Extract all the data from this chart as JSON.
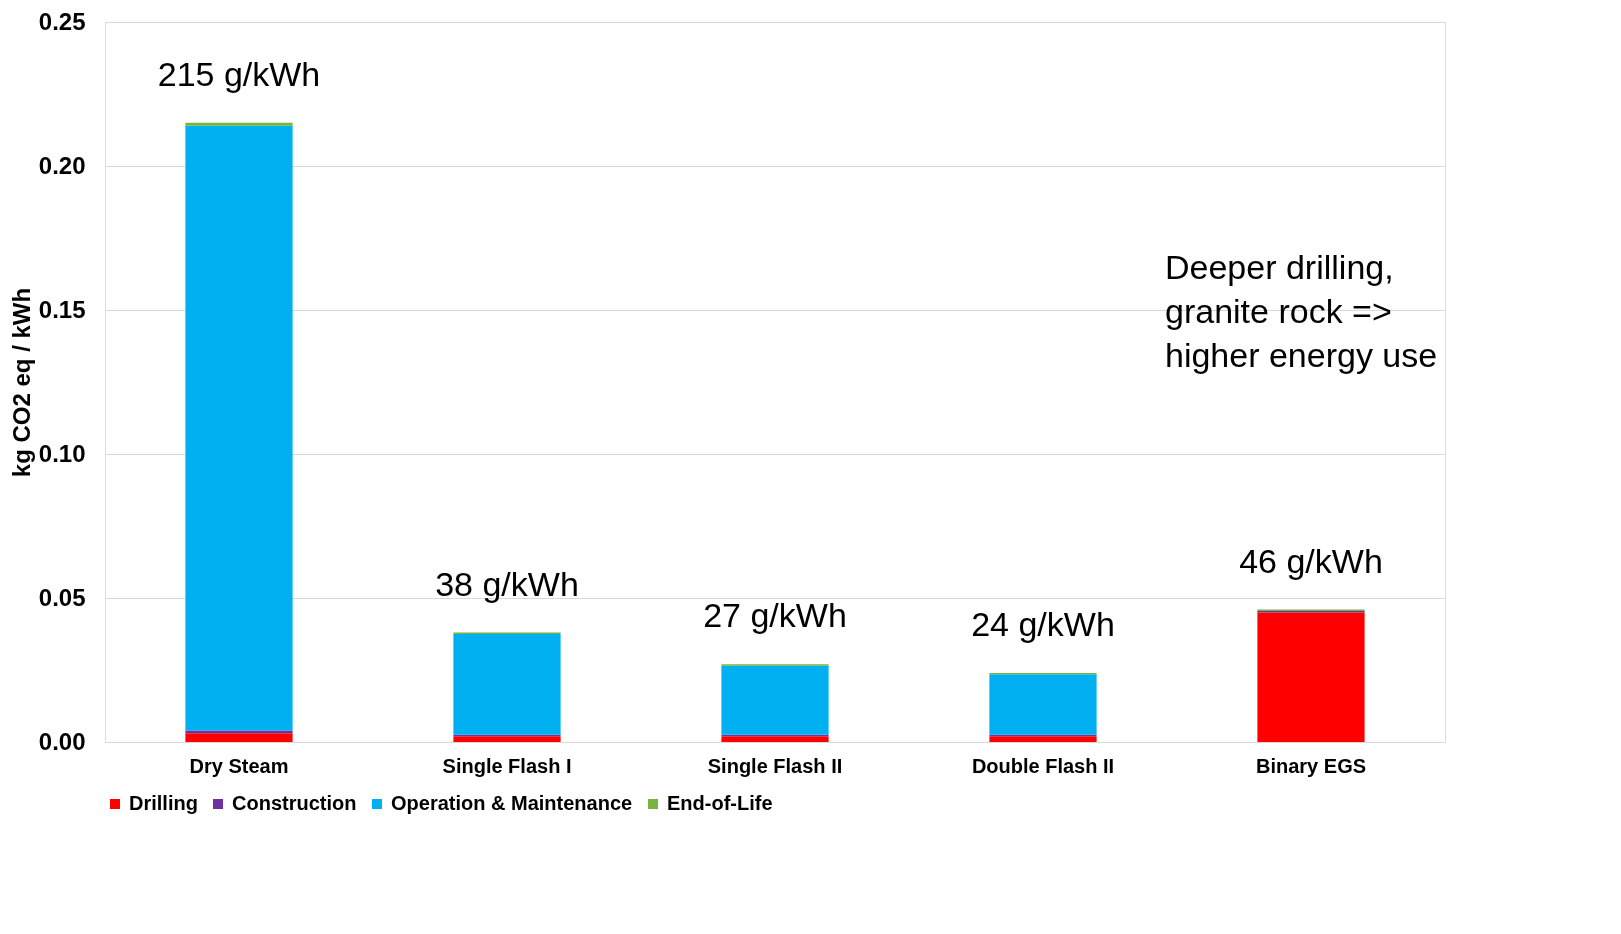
{
  "chart_data": {
    "type": "bar",
    "stacked": true,
    "ylabel": "kg CO2 eq / kWh",
    "categories": [
      "Dry Steam",
      "Single Flash I",
      "Single Flash II",
      "Double Flash II",
      "Binary EGS"
    ],
    "series": [
      {
        "name": "Drilling",
        "color": "#ff0000",
        "values": [
          0.003,
          0.002,
          0.002,
          0.002,
          0.045
        ]
      },
      {
        "name": "Construction",
        "color": "#7030a0",
        "values": [
          0.001,
          0.0005,
          0.0005,
          0.0005,
          0.0005
        ]
      },
      {
        "name": "Operation & Maintenance",
        "color": "#00b0f0",
        "values": [
          0.21,
          0.035,
          0.024,
          0.021,
          0
        ]
      },
      {
        "name": "End-of-Life",
        "color": "#77b341",
        "values": [
          0.001,
          0.0005,
          0.0005,
          0.0005,
          0.0005
        ]
      }
    ],
    "totals": [
      "215 g/kWh",
      "38 g/kWh",
      "27 g/kWh",
      "24 g/kWh",
      "46 g/kWh"
    ],
    "annotations": [
      "Deeper drilling,\ngranite rock =>\nhigher energy use"
    ],
    "ylim": [
      0,
      0.25
    ],
    "yticks": [
      {
        "value": 0,
        "label": "0.00"
      },
      {
        "value": 0.05,
        "label": "0.05"
      },
      {
        "value": 0.1,
        "label": "0.10"
      },
      {
        "value": 0.15,
        "label": "0.15"
      },
      {
        "value": 0.2,
        "label": "0.20"
      },
      {
        "value": 0.25,
        "label": "0.25"
      }
    ],
    "grid": "y",
    "legend": "bottom"
  }
}
